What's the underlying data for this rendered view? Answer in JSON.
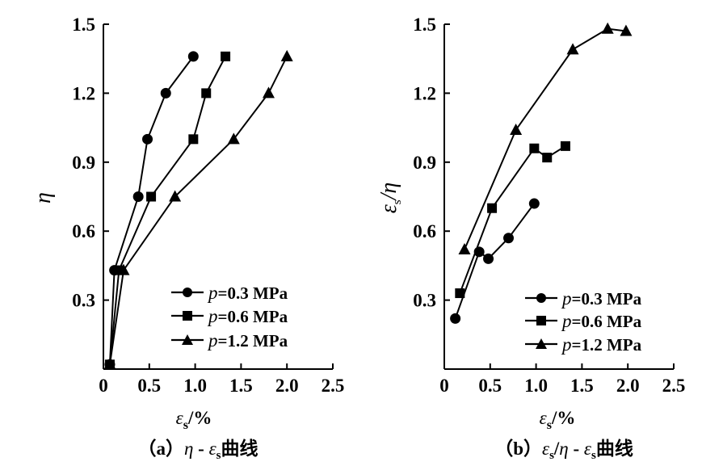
{
  "chart_data": [
    {
      "id": "a",
      "type": "line",
      "caption": {
        "prefix": "（a）",
        "eta": "η",
        "dash": " - ",
        "eps": "ε",
        "sub": "s",
        "suffix": "曲线"
      },
      "xlabel": {
        "eps": "ε",
        "sub": "s",
        "suffix": "/%"
      },
      "ylabel": {
        "main": "η"
      },
      "xlim": [
        0,
        2.5
      ],
      "ylim": [
        0,
        1.5
      ],
      "xticks": [
        "0",
        "0.5",
        "1.0",
        "1.5",
        "2.0",
        "2.5"
      ],
      "yticks": [
        "0.3",
        "0.6",
        "0.9",
        "1.2",
        "1.5"
      ],
      "legend": {
        "position": "bottom-right"
      },
      "series": [
        {
          "name": "p=0.3 MPa",
          "var": "p",
          "label": "=0.3 MPa",
          "marker": "circle",
          "x": [
            0.07,
            0.12,
            0.38,
            0.48,
            0.68,
            0.98
          ],
          "y": [
            0.02,
            0.43,
            0.75,
            1.0,
            1.2,
            1.36
          ]
        },
        {
          "name": "p=0.6 MPa",
          "var": "p",
          "label": "=0.6 MPa",
          "marker": "square",
          "x": [
            0.07,
            0.17,
            0.52,
            0.98,
            1.12,
            1.33
          ],
          "y": [
            0.02,
            0.43,
            0.75,
            1.0,
            1.2,
            1.36
          ]
        },
        {
          "name": "p=1.2 MPa",
          "var": "p",
          "label": "=1.2 MPa",
          "marker": "triangle",
          "x": [
            0.07,
            0.22,
            0.78,
            1.42,
            1.8,
            2.0
          ],
          "y": [
            0.02,
            0.43,
            0.75,
            1.0,
            1.2,
            1.36
          ]
        }
      ]
    },
    {
      "id": "b",
      "type": "line",
      "caption": {
        "prefix": "（b）",
        "eps": "ε",
        "sub": "s",
        "mid": "/",
        "eta": "η",
        "dash": " - ",
        "eps2": "ε",
        "sub2": "s",
        "suffix": "曲线"
      },
      "xlabel": {
        "eps": "ε",
        "sub": "s",
        "suffix": "/%"
      },
      "ylabel": {
        "eps": "ε",
        "sub": "s",
        "suffix": "/η"
      },
      "xlim": [
        0,
        2.5
      ],
      "ylim": [
        0,
        1.5
      ],
      "xticks": [
        "0",
        "0.5",
        "1.0",
        "1.5",
        "2.0",
        "2.5"
      ],
      "yticks": [
        "0.3",
        "0.6",
        "0.9",
        "1.2",
        "1.5"
      ],
      "legend": {
        "position": "bottom-right"
      },
      "series": [
        {
          "name": "p=0.3 MPa",
          "var": "p",
          "label": "=0.3 MPa",
          "marker": "circle",
          "x": [
            0.12,
            0.38,
            0.48,
            0.7,
            0.98
          ],
          "y": [
            0.22,
            0.51,
            0.48,
            0.57,
            0.72
          ]
        },
        {
          "name": "p=0.6 MPa",
          "var": "p",
          "label": "=0.6 MPa",
          "marker": "square",
          "x": [
            0.17,
            0.52,
            0.98,
            1.12,
            1.32
          ],
          "y": [
            0.33,
            0.7,
            0.96,
            0.92,
            0.97
          ]
        },
        {
          "name": "p=1.2 MPa",
          "var": "p",
          "label": "=1.2 MPa",
          "marker": "triangle",
          "x": [
            0.22,
            0.78,
            1.4,
            1.78,
            1.98
          ],
          "y": [
            0.52,
            1.04,
            1.39,
            1.48,
            1.47
          ]
        }
      ]
    }
  ]
}
